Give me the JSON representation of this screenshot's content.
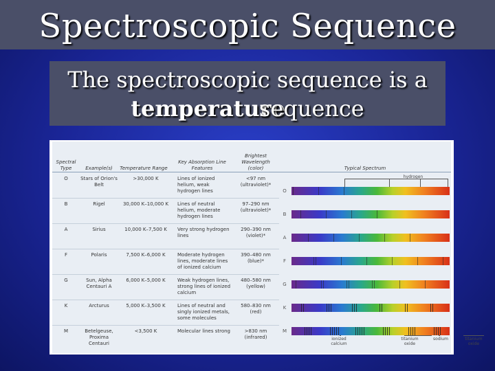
{
  "title": "Spectroscopic Sequence",
  "subtitle": {
    "line1": "The spectroscopic sequence is a",
    "line2_bold": "temperature",
    "line2_rest": "sequence"
  },
  "table": {
    "headers": {
      "spectral_type": "Spectral Type",
      "examples": "Example(s)",
      "temperature": "Temperature Range",
      "features": "Key Absorption Line Features",
      "wavelength": "Brightest Wavelength (color)",
      "spectrum": "Typical Spectrum"
    },
    "rows": [
      {
        "type": "O",
        "example": "Stars of Orion's Belt",
        "temp": ">30,000 K",
        "features": "Lines of ionized helium, weak hydrogen lines",
        "wavelength": "<97 nm (ultraviolet)*"
      },
      {
        "type": "B",
        "example": "Rigel",
        "temp": "30,000 K–10,000 K",
        "features": "Lines of neutral helium, moderate hydrogen lines",
        "wavelength": "97–290 nm (ultraviolet)*"
      },
      {
        "type": "A",
        "example": "Sirius",
        "temp": "10,000 K–7,500 K",
        "features": "Very strong hydrogen lines",
        "wavelength": "290–390 nm (violet)*"
      },
      {
        "type": "F",
        "example": "Polaris",
        "temp": "7,500 K–6,000 K",
        "features": "Moderate hydrogen lines, moderate lines of ionized calcium",
        "wavelength": "390–480 nm (blue)*"
      },
      {
        "type": "G",
        "example": "Sun, Alpha Centauri A",
        "temp": "6,000 K–5,000 K",
        "features": "Weak hydrogen lines, strong lines of ionized calcium",
        "wavelength": "480–580 nm (yellow)"
      },
      {
        "type": "K",
        "example": "Arcturus",
        "temp": "5,000 K–3,500 K",
        "features": "Lines of neutral and singly ionized metals, some molecules",
        "wavelength": "580–830 nm (red)"
      },
      {
        "type": "M",
        "example": "Betelgeuse, Proxima Centauri",
        "temp": "<3,500 K",
        "features": "Molecular lines strong",
        "wavelength": ">830 nm (infrared)"
      }
    ],
    "spectrum_labels": {
      "hydrogen": "hydrogen",
      "ionized_calcium": "ionized calcium",
      "titanium_oxide_1": "titanium oxide",
      "sodium": "sodium",
      "titanium_oxide_2": "titanium oxide"
    }
  }
}
